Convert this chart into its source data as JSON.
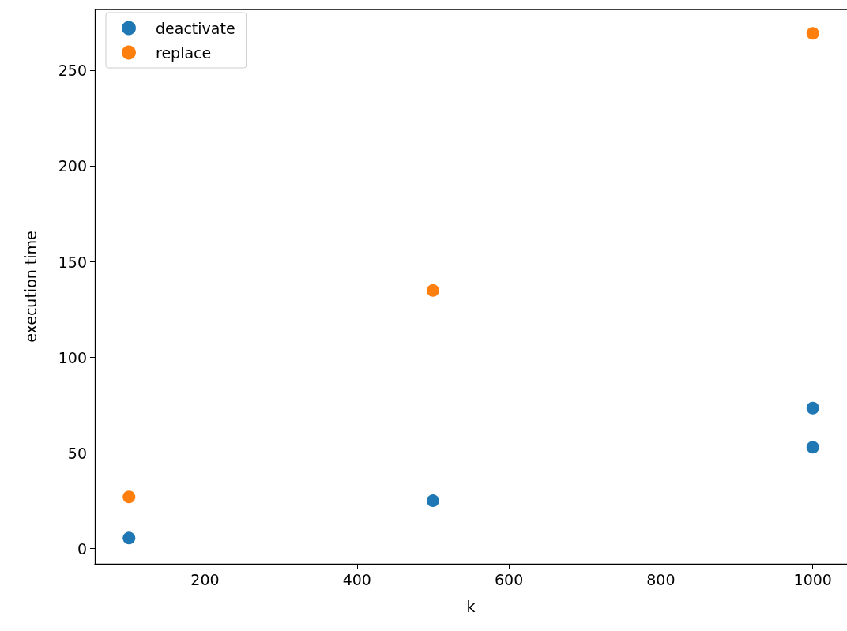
{
  "chart_data": {
    "type": "scatter",
    "xlabel": "k",
    "ylabel": "execution time",
    "series": [
      {
        "name": "deactivate",
        "color": "#1f77b4",
        "x": [
          100,
          500,
          1000,
          1000
        ],
        "values": [
          5.5,
          25,
          73.5,
          53
        ]
      },
      {
        "name": "replace",
        "color": "#ff7f0e",
        "x": [
          100,
          500,
          1000
        ],
        "values": [
          27,
          135,
          269.5
        ]
      }
    ],
    "xlim": [
      55,
      1045
    ],
    "xticks": [
      200,
      400,
      600,
      800,
      1000
    ],
    "ylim": [
      -8,
      282
    ],
    "yticks": [
      0,
      50,
      100,
      150,
      200,
      250
    ],
    "grid": false,
    "legend": "top left",
    "marker": "circle"
  }
}
